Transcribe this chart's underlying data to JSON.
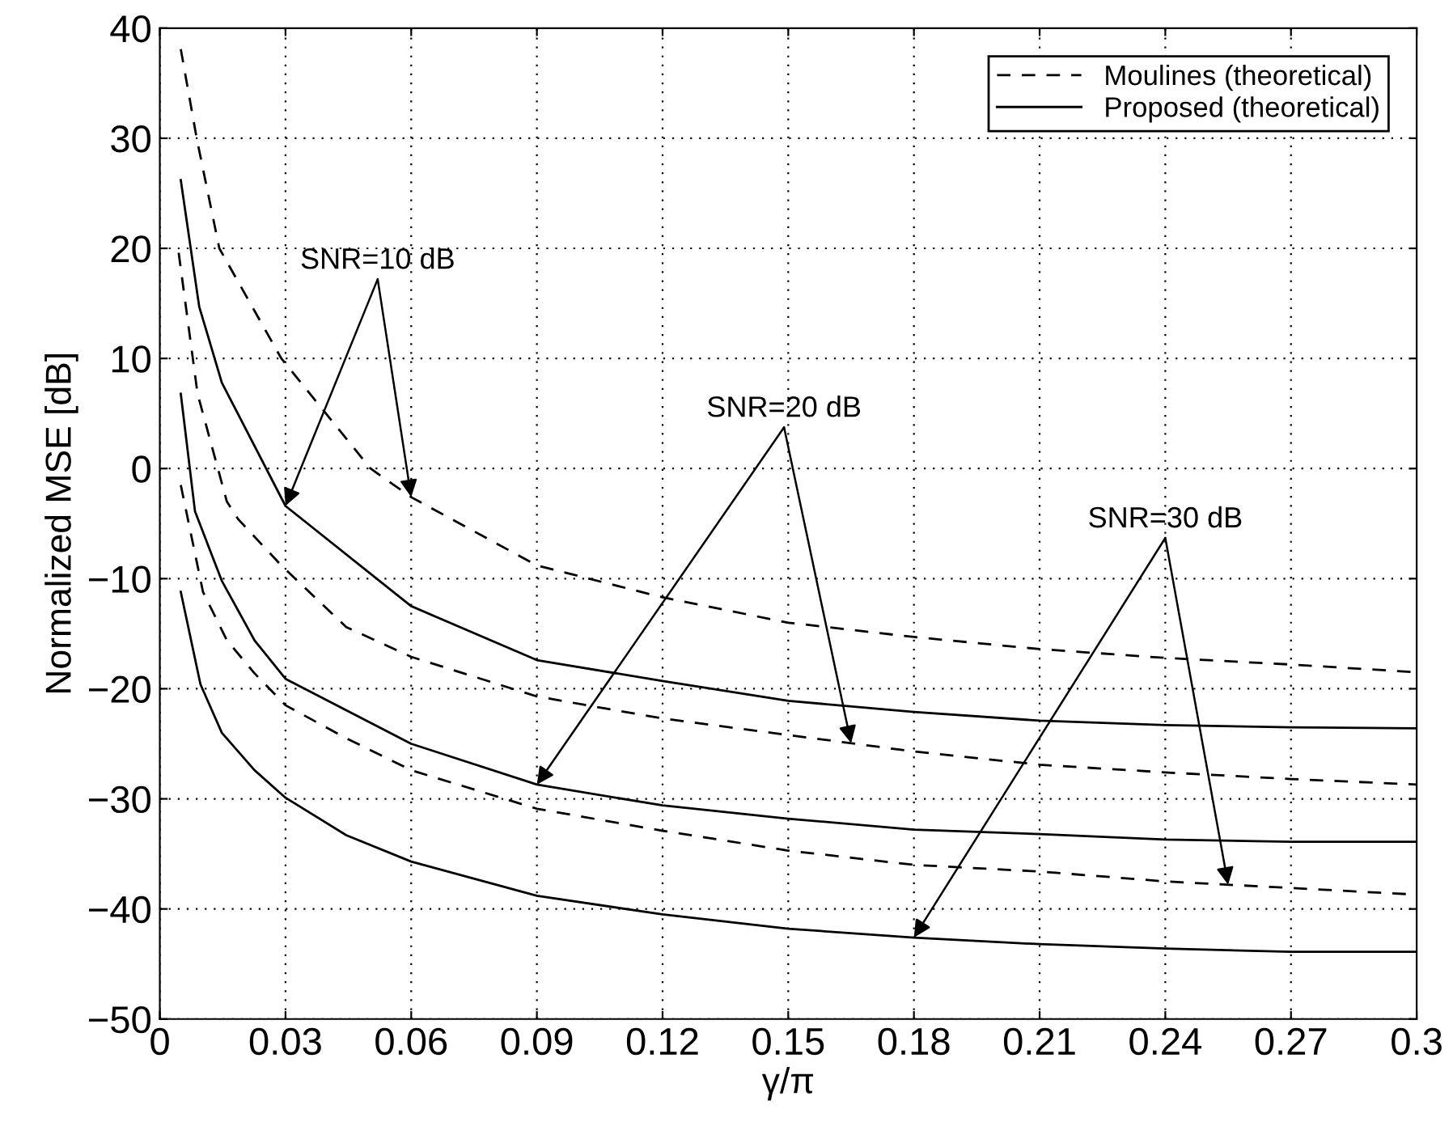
{
  "chart_data": {
    "type": "line",
    "xlabel": "γ/π",
    "ylabel": "Normalized MSE [dB]",
    "xlim": [
      0,
      0.3
    ],
    "xticks": [
      0,
      0.03,
      0.06,
      0.09,
      0.12,
      0.15,
      0.18,
      0.21,
      0.24,
      0.27,
      0.3
    ],
    "ylim": [
      -50,
      40
    ],
    "yticks": [
      -50,
      -40,
      -30,
      -20,
      -10,
      0,
      10,
      20,
      30,
      40
    ],
    "grid": true,
    "legend": "top right",
    "marker": "none",
    "series": [
      {
        "name": "Moulines (theoretical)",
        "color": "#000000",
        "line_style": "dashed",
        "x": [
          0.005,
          0.0088,
          0.0142,
          0.029,
          0.0503,
          0.06,
          0.09,
          0.12,
          0.15,
          0.18,
          0.21,
          0.24,
          0.27,
          0.3
        ],
        "values": [
          38.1,
          30,
          20,
          10,
          0,
          -2.6,
          -8.8,
          -11.7,
          -14.0,
          -15.3,
          -16.4,
          -17.2,
          -17.8,
          -18.5
        ]
      },
      {
        "name": "Proposed (theoretical)",
        "color": "#000000",
        "line_style": "solid",
        "x": [
          0.005,
          0.0094,
          0.0148,
          0.03,
          0.06,
          0.09,
          0.12,
          0.15,
          0.18,
          0.21,
          0.24,
          0.27,
          0.3
        ],
        "values": [
          26.2,
          14.7,
          7.8,
          -3.4,
          -12.5,
          -17.4,
          -19.3,
          -21.1,
          -22.1,
          -22.9,
          -23.3,
          -23.5,
          -23.6
        ]
      },
      {
        "color": "#000000",
        "line_style": "dashed",
        "x": [
          0.0045,
          0.009,
          0.016,
          0.0187,
          0.029,
          0.0445,
          0.06,
          0.09,
          0.12,
          0.15,
          0.18,
          0.21,
          0.24,
          0.27,
          0.3
        ],
        "values": [
          19.6,
          6.8,
          -3,
          -4.6,
          -8.8,
          -14.4,
          -17.1,
          -20.7,
          -22.7,
          -24.2,
          -25.7,
          -26.9,
          -27.6,
          -28.2,
          -28.7
        ]
      },
      {
        "color": "#000000",
        "line_style": "solid",
        "x": [
          0.005,
          0.0084,
          0.0148,
          0.0226,
          0.03,
          0.06,
          0.09,
          0.12,
          0.15,
          0.18,
          0.21,
          0.24,
          0.27,
          0.3
        ],
        "values": [
          6.8,
          -3.9,
          -10.2,
          -15.6,
          -19.1,
          -25.0,
          -28.7,
          -30.6,
          -31.8,
          -32.8,
          -33.2,
          -33.7,
          -33.9,
          -33.9
        ]
      },
      {
        "color": "#000000",
        "line_style": "dashed",
        "x": [
          0.005,
          0.0103,
          0.016,
          0.0226,
          0.03,
          0.0445,
          0.06,
          0.09,
          0.12,
          0.15,
          0.18,
          0.21,
          0.24,
          0.27,
          0.3
        ],
        "values": [
          -1.5,
          -11.2,
          -15.6,
          -18.6,
          -21.5,
          -24.5,
          -27.4,
          -30.9,
          -32.9,
          -34.7,
          -36.0,
          -36.6,
          -37.5,
          -38.1,
          -38.7
        ]
      },
      {
        "color": "#000000",
        "line_style": "solid",
        "x": [
          0.005,
          0.0097,
          0.0148,
          0.0226,
          0.03,
          0.0445,
          0.06,
          0.09,
          0.12,
          0.15,
          0.18,
          0.21,
          0.24,
          0.27,
          0.3
        ],
        "values": [
          -11.2,
          -19.6,
          -24.0,
          -27.4,
          -29.9,
          -33.3,
          -35.7,
          -38.8,
          -40.5,
          -41.8,
          -42.6,
          -43.2,
          -43.6,
          -43.9,
          -43.9
        ]
      }
    ],
    "annotations": [
      {
        "text": "SNR=10 dB",
        "x": 0.03,
        "y": -3.4
      },
      {
        "text": "SNR=20 dB",
        "x": 0.09,
        "y": -28.7
      },
      {
        "text": "SNR=30 dB",
        "x": 0.18,
        "y": -42.6
      }
    ]
  }
}
